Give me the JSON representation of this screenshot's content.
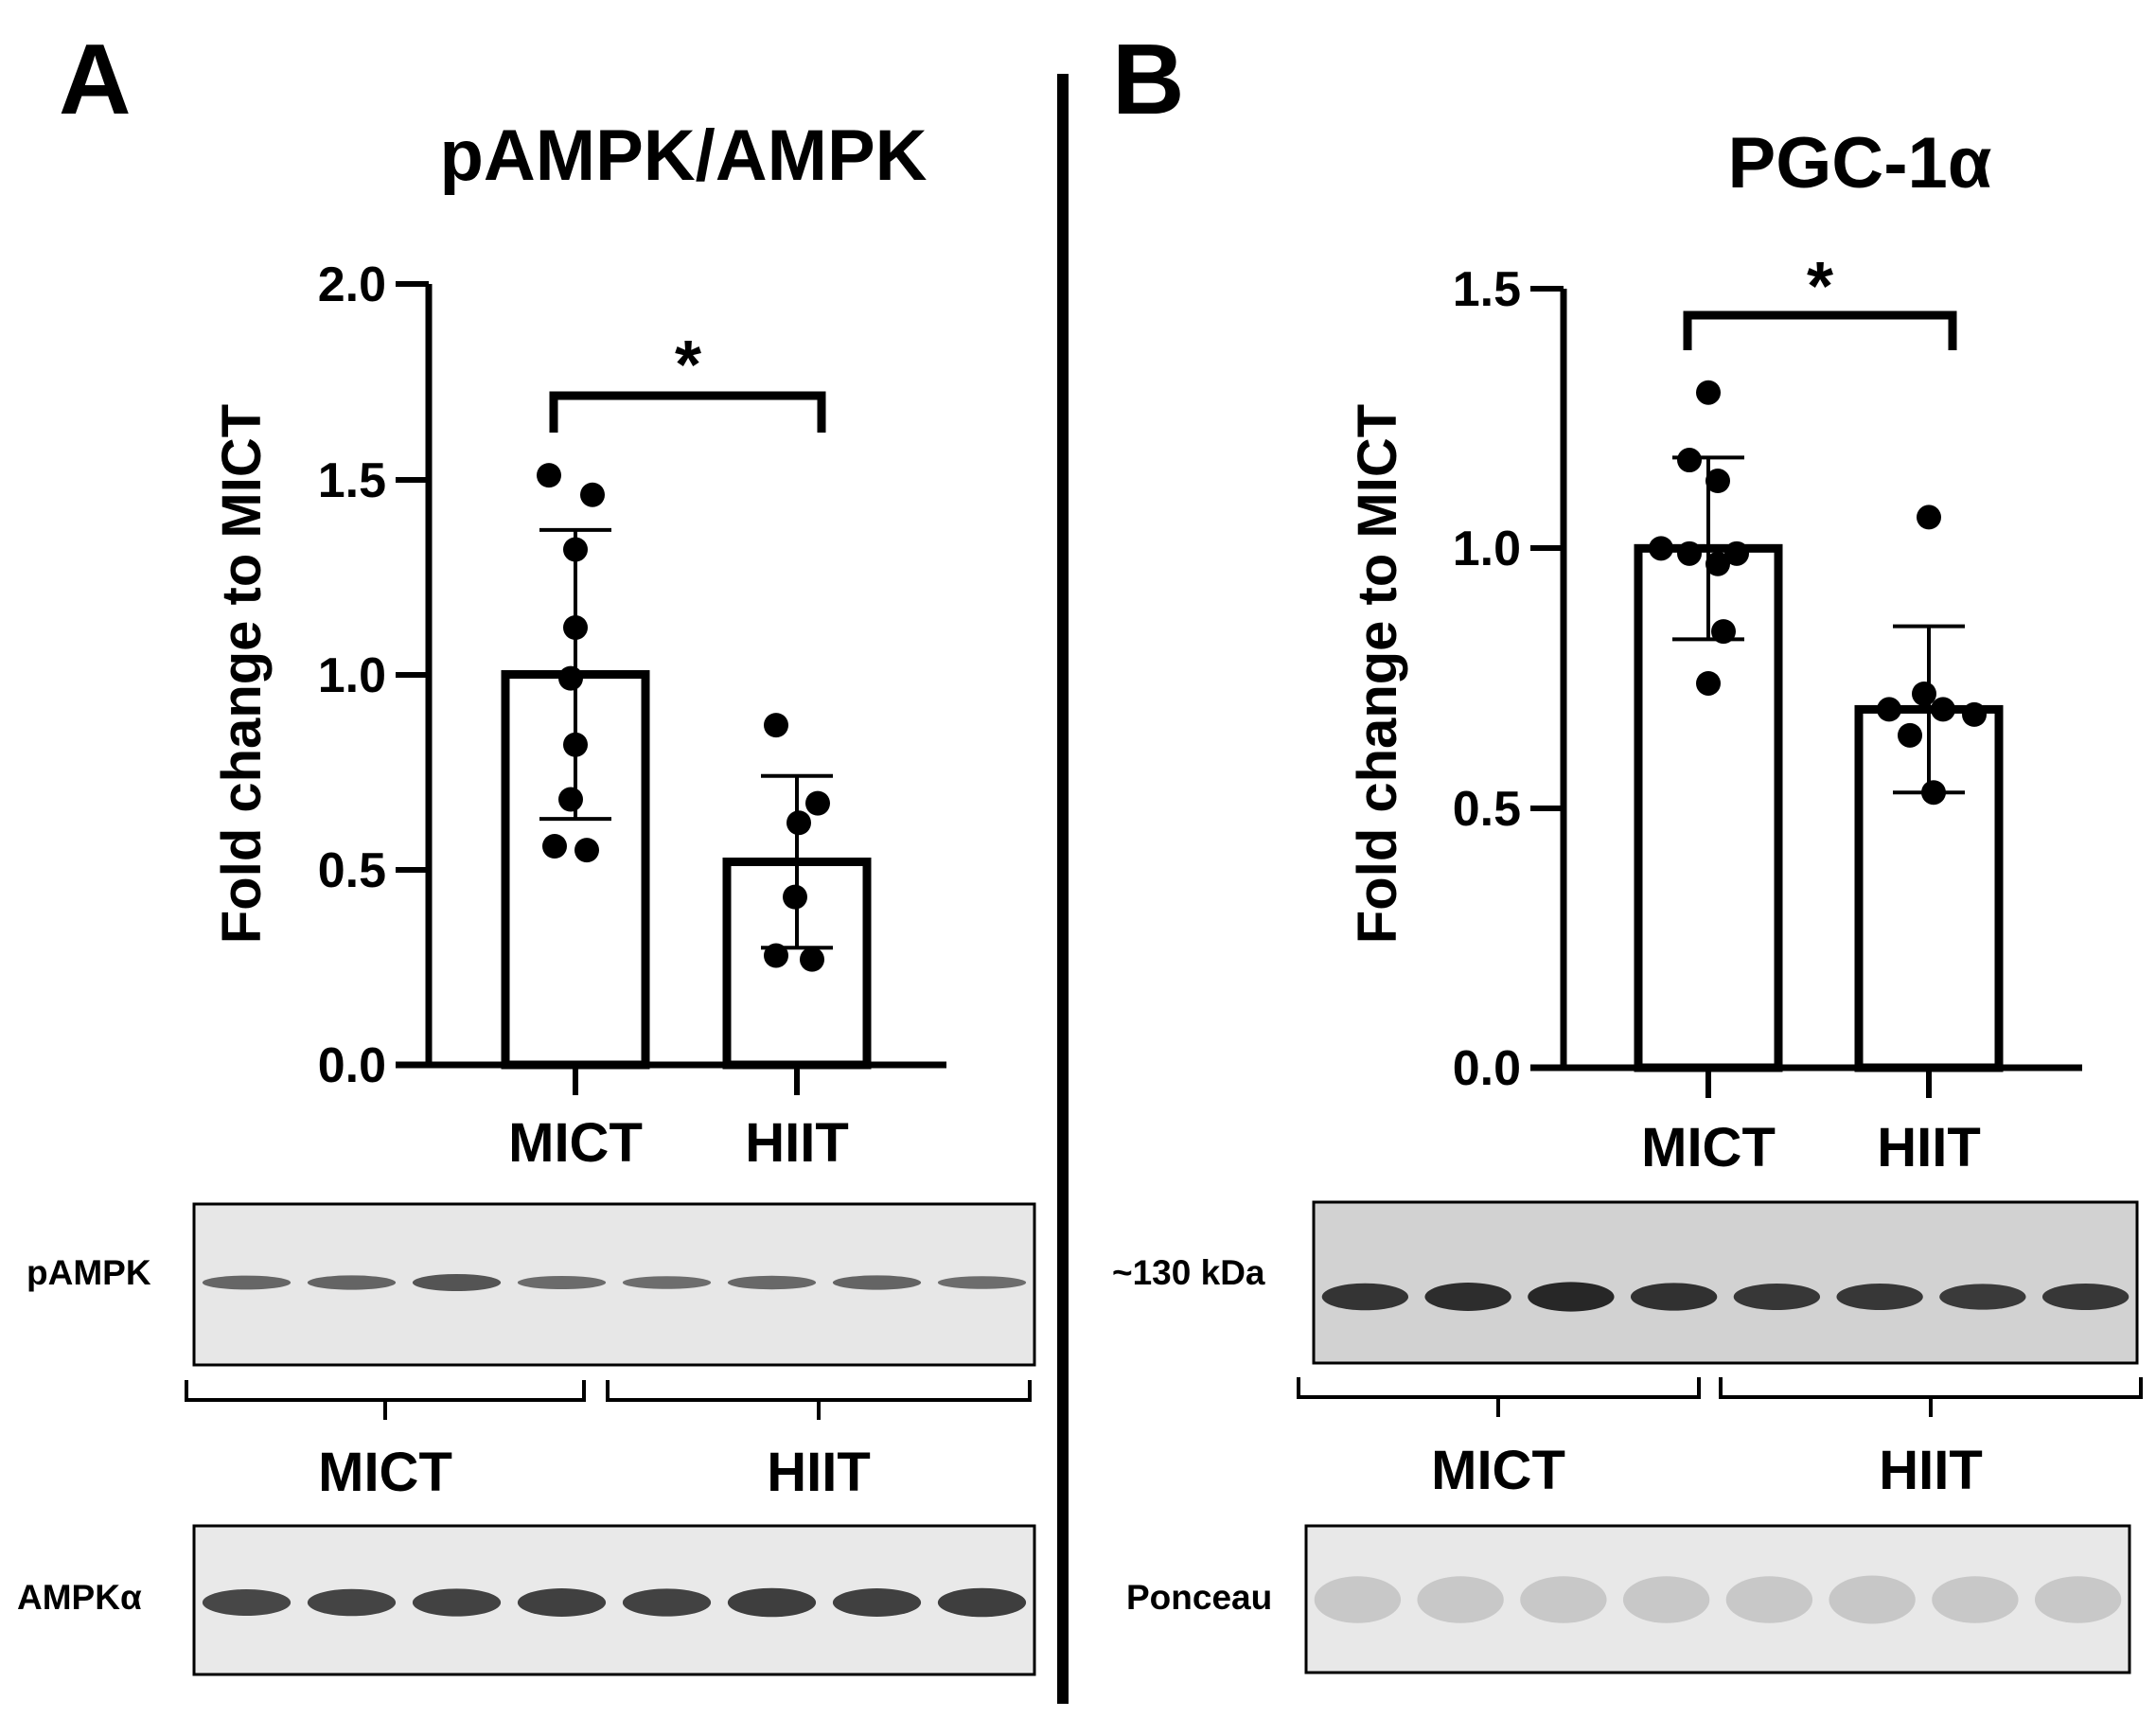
{
  "chart_data": [
    {
      "type": "bar",
      "panel_label": "A",
      "title": "pAMPK/AMPK",
      "ylabel": "Fold change to MICT",
      "ylim": [
        0,
        2.0
      ],
      "yticks": [
        "0.0",
        "0.5",
        "1.0",
        "1.5",
        "2.0"
      ],
      "categories": [
        "MICT",
        "HIIT"
      ],
      "values": [
        1.0,
        0.52
      ],
      "error_sd": [
        0.37,
        0.22
      ],
      "points": [
        [
          1.51,
          1.46,
          1.32,
          1.12,
          0.99,
          0.82,
          0.68,
          0.56,
          0.55
        ],
        [
          0.87,
          0.67,
          0.62,
          0.43,
          0.28,
          0.27
        ]
      ],
      "significance": "*",
      "blots": {
        "top_label": "pAMPK",
        "bottom_label": "AMPKα",
        "groups": [
          "MICT",
          "HIIT"
        ],
        "top_band_intensity": [
          0.45,
          0.5,
          0.85,
          0.35,
          0.3,
          0.4,
          0.5,
          0.3
        ],
        "bottom_band_intensity": [
          0.75,
          0.8,
          0.85,
          0.9,
          0.85,
          0.95,
          0.9,
          0.95
        ]
      }
    },
    {
      "type": "bar",
      "panel_label": "B",
      "title": "PGC-1α",
      "ylabel": "Fold change to MICT",
      "ylim": [
        0,
        1.5
      ],
      "yticks": [
        "0.0",
        "0.5",
        "1.0",
        "1.5"
      ],
      "categories": [
        "MICT",
        "HIIT"
      ],
      "values": [
        1.0,
        0.69
      ],
      "error_sd": [
        0.175,
        0.16
      ],
      "points": [
        [
          1.3,
          1.17,
          1.13,
          1.0,
          0.99,
          0.99,
          0.97,
          0.84,
          0.74
        ],
        [
          1.06,
          0.72,
          0.69,
          0.69,
          0.68,
          0.64,
          0.53
        ]
      ],
      "significance": "*",
      "blots": {
        "top_label": "~130 kDa",
        "bottom_label": "Ponceau",
        "groups": [
          "MICT",
          "HIIT"
        ],
        "top_band_intensity": [
          0.8,
          0.9,
          1.0,
          0.85,
          0.75,
          0.75,
          0.7,
          0.75
        ],
        "bottom_band_intensity": [
          0.25,
          0.25,
          0.25,
          0.25,
          0.25,
          0.3,
          0.25,
          0.25
        ]
      }
    }
  ]
}
